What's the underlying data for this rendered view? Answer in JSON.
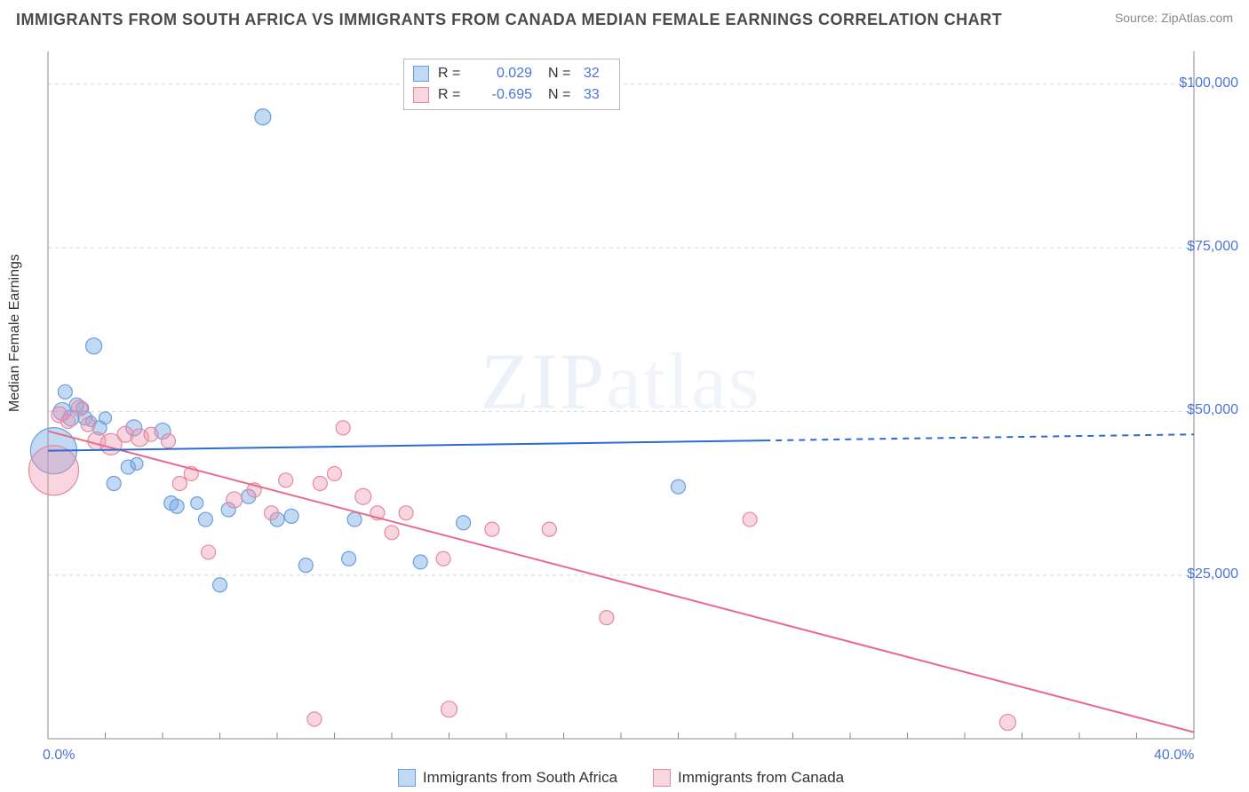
{
  "title": "IMMIGRANTS FROM SOUTH AFRICA VS IMMIGRANTS FROM CANADA MEDIAN FEMALE EARNINGS CORRELATION CHART",
  "source_label": "Source: ",
  "source_value": "ZipAtlas.com",
  "yaxis_label": "Median Female Earnings",
  "watermark_a": "ZIP",
  "watermark_b": "atlas",
  "chart": {
    "type": "scatter",
    "xlim": [
      0,
      40
    ],
    "ylim": [
      0,
      105000
    ],
    "x_ticks": [
      0,
      40
    ],
    "x_tick_labels": [
      "0.0%",
      "40.0%"
    ],
    "x_minor_ticks": [
      2,
      4,
      6,
      8,
      10,
      12,
      14,
      16,
      18,
      20,
      22,
      24,
      26,
      28,
      30,
      32,
      34,
      36,
      38
    ],
    "y_ticks": [
      25000,
      50000,
      75000,
      100000
    ],
    "y_tick_labels": [
      "$25,000",
      "$50,000",
      "$75,000",
      "$100,000"
    ],
    "grid_color": "#d8d8d8",
    "axis_color": "#888888",
    "background_color": "#ffffff",
    "trend_blue": {
      "color": "#2d6ad2",
      "width": 2,
      "solid_to_x": 25,
      "start": [
        0,
        44000
      ],
      "end": [
        40,
        46500
      ]
    },
    "trend_pink": {
      "color": "#e86a8a",
      "width": 2,
      "start": [
        0,
        47000
      ],
      "end": [
        40,
        1000
      ]
    },
    "series": [
      {
        "name": "Immigrants from South Africa",
        "fill": "rgba(120,170,230,0.45)",
        "stroke": "#6a9edc",
        "points": [
          {
            "x": 0.2,
            "y": 44000,
            "r": 26
          },
          {
            "x": 0.5,
            "y": 50000,
            "r": 10
          },
          {
            "x": 0.6,
            "y": 53000,
            "r": 8
          },
          {
            "x": 0.8,
            "y": 49000,
            "r": 9
          },
          {
            "x": 1.0,
            "y": 51000,
            "r": 8
          },
          {
            "x": 1.2,
            "y": 50500,
            "r": 7
          },
          {
            "x": 1.3,
            "y": 49000,
            "r": 8
          },
          {
            "x": 1.5,
            "y": 48500,
            "r": 6
          },
          {
            "x": 1.6,
            "y": 60000,
            "r": 9
          },
          {
            "x": 1.8,
            "y": 47500,
            "r": 8
          },
          {
            "x": 2.0,
            "y": 49000,
            "r": 7
          },
          {
            "x": 2.3,
            "y": 39000,
            "r": 8
          },
          {
            "x": 2.8,
            "y": 41500,
            "r": 8
          },
          {
            "x": 3.0,
            "y": 47500,
            "r": 9
          },
          {
            "x": 3.1,
            "y": 42000,
            "r": 7
          },
          {
            "x": 4.0,
            "y": 47000,
            "r": 9
          },
          {
            "x": 4.3,
            "y": 36000,
            "r": 8
          },
          {
            "x": 4.5,
            "y": 35500,
            "r": 8
          },
          {
            "x": 5.2,
            "y": 36000,
            "r": 7
          },
          {
            "x": 5.5,
            "y": 33500,
            "r": 8
          },
          {
            "x": 6.0,
            "y": 23500,
            "r": 8
          },
          {
            "x": 6.3,
            "y": 35000,
            "r": 8
          },
          {
            "x": 7.0,
            "y": 37000,
            "r": 8
          },
          {
            "x": 7.5,
            "y": 95000,
            "r": 9
          },
          {
            "x": 8.0,
            "y": 33500,
            "r": 8
          },
          {
            "x": 8.5,
            "y": 34000,
            "r": 8
          },
          {
            "x": 9.0,
            "y": 26500,
            "r": 8
          },
          {
            "x": 10.5,
            "y": 27500,
            "r": 8
          },
          {
            "x": 10.7,
            "y": 33500,
            "r": 8
          },
          {
            "x": 13.0,
            "y": 27000,
            "r": 8
          },
          {
            "x": 14.5,
            "y": 33000,
            "r": 8
          },
          {
            "x": 22.0,
            "y": 38500,
            "r": 8
          }
        ]
      },
      {
        "name": "Immigrants from Canada",
        "fill": "rgba(240,150,175,0.40)",
        "stroke": "#e28aa3",
        "points": [
          {
            "x": 0.2,
            "y": 41000,
            "r": 28
          },
          {
            "x": 0.4,
            "y": 49500,
            "r": 9
          },
          {
            "x": 0.7,
            "y": 48500,
            "r": 8
          },
          {
            "x": 1.1,
            "y": 50500,
            "r": 9
          },
          {
            "x": 1.4,
            "y": 48000,
            "r": 8
          },
          {
            "x": 1.7,
            "y": 45500,
            "r": 10
          },
          {
            "x": 2.2,
            "y": 45000,
            "r": 12
          },
          {
            "x": 2.7,
            "y": 46500,
            "r": 9
          },
          {
            "x": 3.2,
            "y": 46000,
            "r": 10
          },
          {
            "x": 3.6,
            "y": 46500,
            "r": 8
          },
          {
            "x": 4.2,
            "y": 45500,
            "r": 8
          },
          {
            "x": 4.6,
            "y": 39000,
            "r": 8
          },
          {
            "x": 5.0,
            "y": 40500,
            "r": 8
          },
          {
            "x": 5.6,
            "y": 28500,
            "r": 8
          },
          {
            "x": 6.5,
            "y": 36500,
            "r": 9
          },
          {
            "x": 7.2,
            "y": 38000,
            "r": 8
          },
          {
            "x": 7.8,
            "y": 34500,
            "r": 8
          },
          {
            "x": 8.3,
            "y": 39500,
            "r": 8
          },
          {
            "x": 9.3,
            "y": 3000,
            "r": 8
          },
          {
            "x": 9.5,
            "y": 39000,
            "r": 8
          },
          {
            "x": 10.0,
            "y": 40500,
            "r": 8
          },
          {
            "x": 10.3,
            "y": 47500,
            "r": 8
          },
          {
            "x": 11.0,
            "y": 37000,
            "r": 9
          },
          {
            "x": 11.5,
            "y": 34500,
            "r": 8
          },
          {
            "x": 12.0,
            "y": 31500,
            "r": 8
          },
          {
            "x": 12.5,
            "y": 34500,
            "r": 8
          },
          {
            "x": 13.8,
            "y": 27500,
            "r": 8
          },
          {
            "x": 14.0,
            "y": 4500,
            "r": 9
          },
          {
            "x": 15.5,
            "y": 32000,
            "r": 8
          },
          {
            "x": 17.5,
            "y": 32000,
            "r": 8
          },
          {
            "x": 19.5,
            "y": 18500,
            "r": 8
          },
          {
            "x": 24.5,
            "y": 33500,
            "r": 8
          },
          {
            "x": 33.5,
            "y": 2500,
            "r": 9
          }
        ]
      }
    ]
  },
  "rn_legend": {
    "rows": [
      {
        "swatch_fill": "rgba(120,170,230,0.45)",
        "swatch_stroke": "#6a9edc",
        "r_label": "R =",
        "r_value": "0.029",
        "n_label": "N =",
        "n_value": "32"
      },
      {
        "swatch_fill": "rgba(240,150,175,0.40)",
        "swatch_stroke": "#e28aa3",
        "r_label": "R =",
        "r_value": "-0.695",
        "n_label": "N =",
        "n_value": "33"
      }
    ]
  },
  "series_legend": [
    {
      "swatch_fill": "rgba(120,170,230,0.45)",
      "swatch_stroke": "#6a9edc",
      "label": "Immigrants from South Africa"
    },
    {
      "swatch_fill": "rgba(240,150,175,0.40)",
      "swatch_stroke": "#e28aa3",
      "label": "Immigrants from Canada"
    }
  ]
}
